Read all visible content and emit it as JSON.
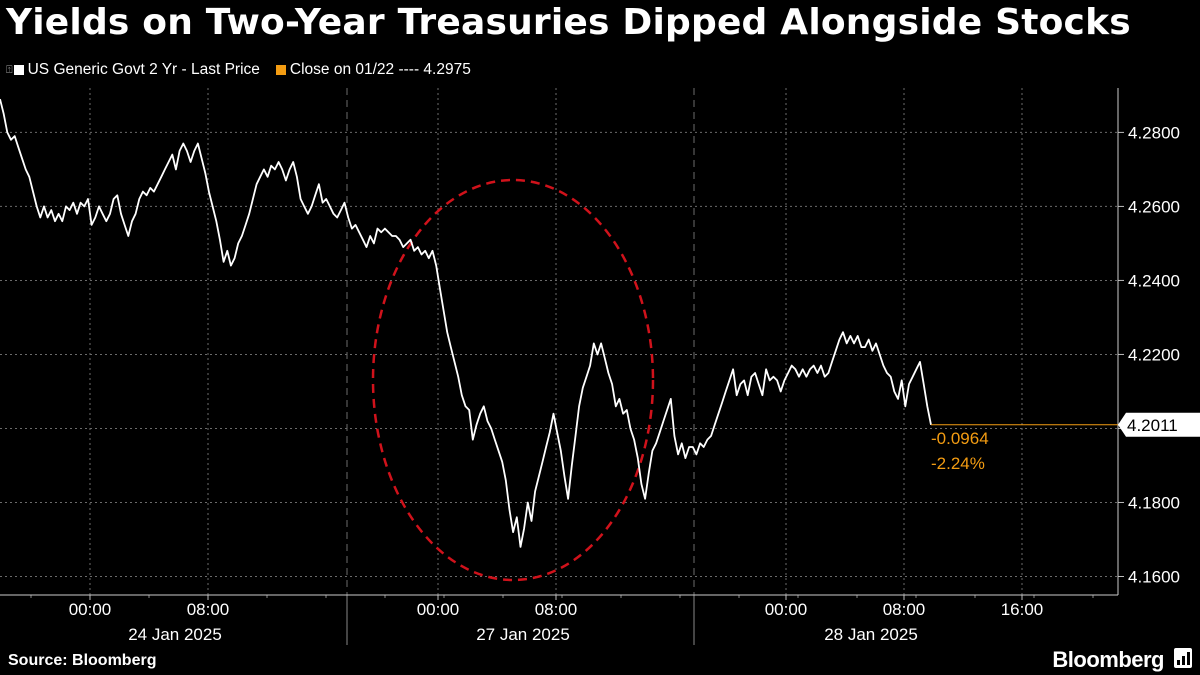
{
  "title": "Yields on Two-Year Treasuries Dipped Alongside Stocks",
  "legend": [
    {
      "label": "US Generic Govt 2 Yr - Last Price",
      "color": "#ffffff"
    },
    {
      "label": "Close on 01/22 ---- 4.2975",
      "color": "#f39c12"
    }
  ],
  "source": "Source: Bloomberg",
  "brand": "Bloomberg",
  "chart_data": {
    "type": "line",
    "ylim": [
      4.155,
      4.292
    ],
    "y_ticks": [
      "4.1600",
      "4.1800",
      "4.2000",
      "4.2200",
      "4.2400",
      "4.2600",
      "4.2800"
    ],
    "x_ticks": [
      "00:00",
      "08:00",
      "00:00",
      "08:00",
      "00:00",
      "08:00",
      "16:00"
    ],
    "x_day_labels": [
      "24 Jan 2025",
      "27 Jan 2025",
      "28 Jan 2025"
    ],
    "last_value_label": "4.2011",
    "change_abs": "-0.0964",
    "change_pct": "-2.24%",
    "grid": true,
    "annotation": "red dashed ellipse",
    "series": [
      {
        "values": [
          4.289,
          4.285,
          4.28,
          4.278,
          4.279,
          4.276,
          4.273,
          4.27,
          4.268,
          4.264,
          4.26,
          4.257,
          4.26,
          4.257,
          4.259,
          4.256,
          4.258,
          4.256,
          4.26,
          4.259,
          4.261,
          4.258,
          4.261,
          4.26,
          4.262,
          4.255,
          4.257,
          4.26,
          4.258,
          4.256,
          4.258,
          4.262,
          4.263,
          4.258,
          4.255,
          4.252,
          4.256,
          4.258,
          4.262,
          4.264,
          4.263,
          4.265,
          4.264,
          4.266,
          4.268,
          4.27,
          4.272,
          4.274,
          4.27,
          4.275,
          4.277,
          4.275,
          4.272,
          4.275,
          4.277,
          4.273,
          4.269,
          4.264,
          4.26,
          4.256,
          4.251,
          4.245,
          4.248,
          4.244,
          4.246,
          4.25,
          4.252,
          4.255,
          4.258,
          4.262,
          4.266,
          4.268,
          4.27,
          4.268,
          4.271,
          4.27,
          4.272,
          4.27,
          4.267,
          4.27,
          4.272,
          4.268,
          4.262,
          4.26,
          4.258,
          4.26,
          4.263,
          4.266,
          4.261,
          4.262,
          4.26,
          4.258,
          4.257,
          4.259,
          4.261,
          4.257,
          4.254,
          4.255,
          4.253,
          4.251,
          4.249,
          4.252,
          4.25,
          4.254,
          4.253,
          4.254,
          4.253,
          4.252,
          4.252,
          4.251,
          4.249,
          4.25,
          4.251,
          4.248,
          4.249,
          4.247,
          4.248,
          4.246,
          4.248,
          4.244,
          4.238,
          4.232,
          4.226,
          4.222,
          4.218,
          4.214,
          4.209,
          4.206,
          4.205,
          4.197,
          4.201,
          4.204,
          4.206,
          4.202,
          4.2,
          4.197,
          4.194,
          4.191,
          4.186,
          4.178,
          4.172,
          4.176,
          4.168,
          4.173,
          4.18,
          4.175,
          4.183,
          4.187,
          4.191,
          4.195,
          4.199,
          4.204,
          4.199,
          4.194,
          4.187,
          4.181,
          4.19,
          4.198,
          4.206,
          4.211,
          4.214,
          4.217,
          4.223,
          4.22,
          4.223,
          4.219,
          4.215,
          4.212,
          4.206,
          4.208,
          4.204,
          4.205,
          4.2,
          4.197,
          4.192,
          4.185,
          4.181,
          4.188,
          4.194,
          4.196,
          4.199,
          4.202,
          4.205,
          4.208,
          4.198,
          4.193,
          4.196,
          4.192,
          4.195,
          4.195,
          4.193,
          4.196,
          4.195,
          4.197,
          4.198,
          4.201,
          4.204,
          4.207,
          4.21,
          4.213,
          4.216,
          4.209,
          4.212,
          4.213,
          4.209,
          4.214,
          4.215,
          4.212,
          4.209,
          4.216,
          4.213,
          4.214,
          4.213,
          4.21,
          4.213,
          4.215,
          4.217,
          4.216,
          4.214,
          4.216,
          4.214,
          4.216,
          4.217,
          4.215,
          4.217,
          4.214,
          4.215,
          4.218,
          4.221,
          4.224,
          4.226,
          4.223,
          4.225,
          4.223,
          4.225,
          4.222,
          4.222,
          4.224,
          4.221,
          4.223,
          4.22,
          4.217,
          4.215,
          4.214,
          4.21,
          4.208,
          4.213,
          4.206,
          4.212,
          4.214,
          4.216,
          4.218,
          4.212,
          4.206,
          4.201
        ]
      }
    ]
  }
}
